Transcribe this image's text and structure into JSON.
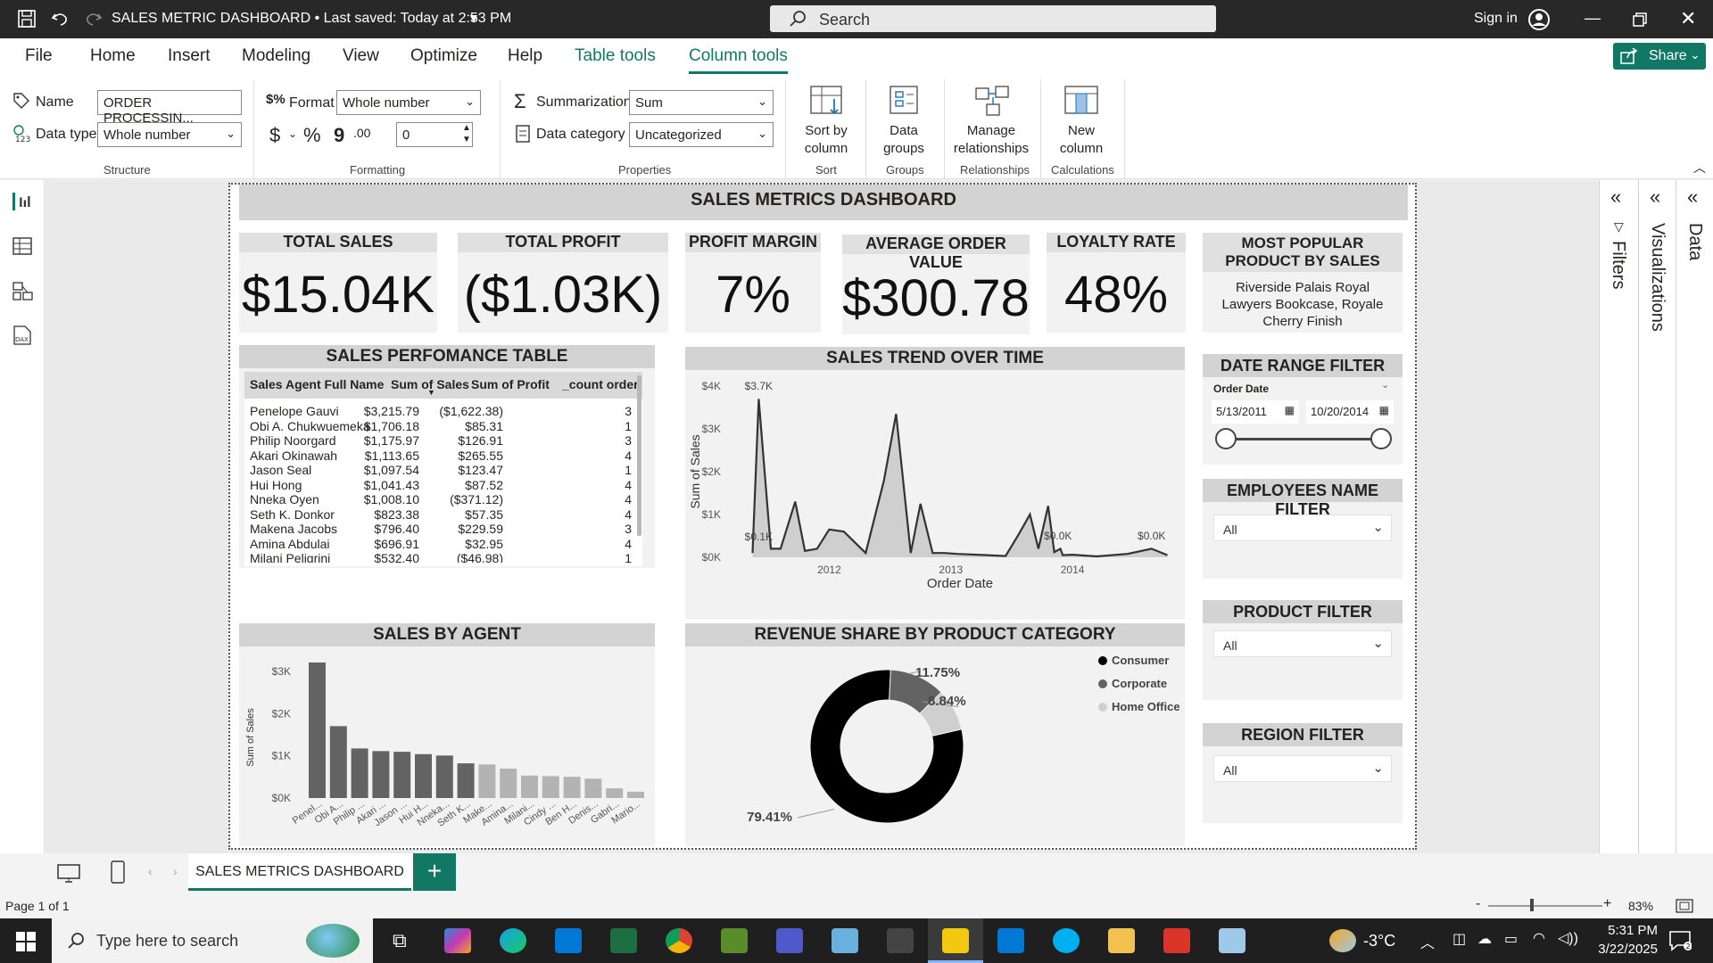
{
  "titlebar": {
    "title": "SALES METRIC DASHBOARD • Last saved: Today at 2:53 PM",
    "search_placeholder": "Search",
    "signin": "Sign in"
  },
  "menu": {
    "items": [
      "File",
      "Home",
      "Insert",
      "Modeling",
      "View",
      "Optimize",
      "Help",
      "Table tools",
      "Column tools"
    ],
    "share": "Share"
  },
  "ribbon": {
    "name_label": "Name",
    "name_value": "ORDER PROCESSIN...",
    "datatype_label": "Data type",
    "datatype_value": "Whole number",
    "structure_group": "Structure",
    "format_label": "Format",
    "format_value": "Whole number",
    "currency_symbol": "$",
    "percent_symbol": "%",
    "comma_symbol": "9",
    "decimals_value": "0",
    "formatting_group": "Formatting",
    "summarization_label": "Summarization",
    "summarization_value": "Sum",
    "datacategory_label": "Data category",
    "datacategory_value": "Uncategorized",
    "properties_group": "Properties",
    "sort_by_column": "Sort by column",
    "sort_group": "Sort",
    "data_groups": "Data groups",
    "groups_group": "Groups",
    "manage_relationships": "Manage relationships",
    "relationships_group": "Relationships",
    "new_column": "New column",
    "calculations_group": "Calculations"
  },
  "report": {
    "title": "SALES METRICS DASHBOARD",
    "kpis": [
      {
        "label": "TOTAL SALES",
        "value": "$15.04K"
      },
      {
        "label": "TOTAL PROFIT",
        "value": "($1.03K)"
      },
      {
        "label": "PROFIT MARGIN",
        "value": "7%"
      },
      {
        "label": "AVERAGE ORDER VALUE",
        "value": "$300.78"
      },
      {
        "label": "LOYALTY RATE",
        "value": "48%"
      }
    ],
    "popular": {
      "label": "MOST POPULAR PRODUCT BY SALES",
      "value": "Riverside Palais Royal Lawyers Bookcase, Royale Cherry Finish"
    },
    "table": {
      "title": "SALES PERFOMANCE TABLE",
      "headers": [
        "Sales Agent Full Name",
        "Sum of Sales",
        "Sum of Profit",
        "_count order"
      ],
      "rows": [
        [
          "Penelope Gauvi",
          "$3,215.79",
          "($1,622.38)",
          "3"
        ],
        [
          "Obi A. Chukwuemeka",
          "$1,706.18",
          "$85.31",
          "1"
        ],
        [
          "Philip Noorgard",
          "$1,175.97",
          "$126.91",
          "3"
        ],
        [
          "Akari Okinawah",
          "$1,113.65",
          "$265.55",
          "4"
        ],
        [
          "Jason Seal",
          "$1,097.54",
          "$123.47",
          "1"
        ],
        [
          "Hui Hong",
          "$1,041.43",
          "$87.52",
          "4"
        ],
        [
          "Nneka Oyen",
          "$1,008.10",
          "($371.12)",
          "4"
        ],
        [
          "Seth K. Donkor",
          "$823.38",
          "$57.35",
          "4"
        ],
        [
          "Makena Jacobs",
          "$796.40",
          "$229.59",
          "3"
        ],
        [
          "Amina Abdulai",
          "$696.91",
          "$32.95",
          "4"
        ],
        [
          "Milani Peligrini",
          "$532.40",
          "($46.98)",
          "1"
        ]
      ]
    },
    "trend_title": "SALES TREND OVER TIME",
    "agent_title": "SALES BY AGENT",
    "donut_title": "REVENUE SHARE BY PRODUCT CATEGORY",
    "filters": {
      "date_title": "DATE RANGE FILTER",
      "date_field": "Order Date",
      "date_from": "5/13/2011",
      "date_to": "10/20/2014",
      "emp_title": "EMPLOYEES NAME FILTER",
      "emp_value": "All",
      "product_title": "PRODUCT FILTER",
      "product_value": "All",
      "region_title": "REGION FILTER",
      "region_value": "All"
    }
  },
  "panes": {
    "filters": "Filters",
    "visualizations": "Visualizations",
    "data": "Data"
  },
  "tabs": {
    "page_tab": "SALES METRICS DASHBOARD",
    "add": "+"
  },
  "status": {
    "page": "Page 1 of 1",
    "zoom": "83%"
  },
  "taskbar": {
    "search_placeholder": "Type here to search",
    "weather": "-3°C",
    "time": "5:31 PM",
    "date": "3/22/2025"
  },
  "colors": {
    "accent": "#117865",
    "dark_series": "#636363",
    "light_series": "#b3b3b3"
  },
  "chart_data": [
    {
      "type": "area",
      "title": "SALES TREND OVER TIME",
      "xlabel": "Order Date",
      "ylabel": "Sum of Sales",
      "ylim": [
        0,
        4000
      ],
      "yticks": [
        "$0K",
        "$1K",
        "$2K",
        "$3K",
        "$4K"
      ],
      "xticks": [
        "2012",
        "2013",
        "2014"
      ],
      "x": [
        2011.37,
        2011.42,
        2011.52,
        2011.6,
        2011.72,
        2011.8,
        2011.9,
        2012.0,
        2012.12,
        2012.3,
        2012.45,
        2012.55,
        2012.67,
        2012.75,
        2012.85,
        2012.95,
        2013.05,
        2013.3,
        2013.45,
        2013.55,
        2013.65,
        2013.72,
        2013.8,
        2013.85,
        2013.9,
        2013.92,
        2014.0,
        2014.2,
        2014.45,
        2014.65,
        2014.78
      ],
      "values": [
        100,
        3700,
        200,
        200,
        1300,
        150,
        200,
        650,
        600,
        100,
        1800,
        3350,
        100,
        1250,
        100,
        100,
        80,
        50,
        30,
        500,
        1000,
        200,
        1200,
        120,
        200,
        50,
        60,
        20,
        80,
        200,
        50
      ],
      "annotations": [
        "$3.7K",
        "$0.1K",
        "$0.0K",
        "$0.0K"
      ]
    },
    {
      "type": "bar",
      "title": "SALES BY AGENT",
      "ylabel": "Sum of Sales",
      "ylim": [
        0,
        3300
      ],
      "yticks": [
        "$0K",
        "$1K",
        "$2K",
        "$3K"
      ],
      "categories": [
        "Penel...",
        "Obi A...",
        "Philip ...",
        "Akari ...",
        "Jason ...",
        "Hui H...",
        "Nneka...",
        "Seth K...",
        "Make...",
        "Amina...",
        "Milani...",
        "Cindy ...",
        "Ben H...",
        "Denis...",
        "Gabri...",
        "Mario..."
      ],
      "values": [
        3215.79,
        1706.18,
        1175.97,
        1113.65,
        1097.54,
        1041.43,
        1008.1,
        823.38,
        796.4,
        696.91,
        532.4,
        520,
        505,
        460,
        230,
        150
      ],
      "highlighted_count": 8
    },
    {
      "type": "pie",
      "title": "REVENUE SHARE BY PRODUCT CATEGORY",
      "categories": [
        "Consumer",
        "Corporate",
        "Home Office"
      ],
      "values": [
        79.41,
        11.75,
        8.84
      ],
      "labels": [
        "79.41%",
        "11.75%",
        "8.84%"
      ],
      "colors": [
        "#000000",
        "#636363",
        "#cfcfcf"
      ]
    }
  ]
}
